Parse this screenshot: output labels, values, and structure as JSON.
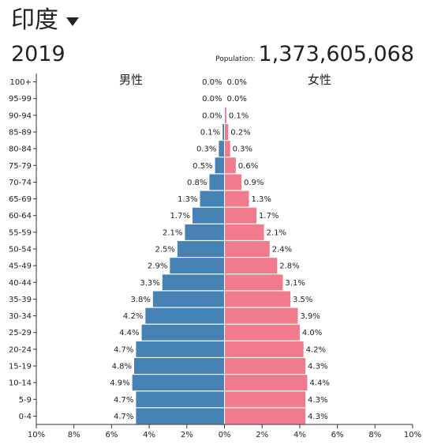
{
  "header": {
    "country": "印度",
    "year": "2019",
    "population_label": "Population:",
    "population_value": "1,373,605,068"
  },
  "chart_data": {
    "type": "bar",
    "orientation": "horizontal-pyramid",
    "categories": [
      "100+",
      "95-99",
      "90-94",
      "85-89",
      "80-84",
      "75-79",
      "70-74",
      "65-69",
      "60-64",
      "55-59",
      "50-54",
      "45-49",
      "40-44",
      "35-39",
      "30-34",
      "25-29",
      "20-24",
      "15-19",
      "10-14",
      "5-9",
      "0-4"
    ],
    "series": [
      {
        "name": "男性",
        "color": "#4682b4",
        "values": [
          0.0,
          0.0,
          0.0,
          0.1,
          0.3,
          0.5,
          0.8,
          1.3,
          1.7,
          2.1,
          2.5,
          2.9,
          3.3,
          3.8,
          4.2,
          4.4,
          4.7,
          4.8,
          4.9,
          4.7,
          4.7
        ],
        "labels": [
          "0.0%",
          "0.0%",
          "0.0%",
          "0.1%",
          "0.3%",
          "0.5%",
          "0.8%",
          "1.3%",
          "1.7%",
          "2.1%",
          "2.5%",
          "2.9%",
          "3.3%",
          "3.8%",
          "4.2%",
          "4.4%",
          "4.7%",
          "4.8%",
          "4.9%",
          "4.7%",
          "4.7%"
        ]
      },
      {
        "name": "女性",
        "color": "#f07b8c",
        "values": [
          0.0,
          0.0,
          0.1,
          0.2,
          0.3,
          0.6,
          0.9,
          1.3,
          1.7,
          2.1,
          2.4,
          2.8,
          3.1,
          3.5,
          3.9,
          4.0,
          4.2,
          4.3,
          4.4,
          4.3,
          4.3
        ],
        "labels": [
          "0.0%",
          "0.0%",
          "0.1%",
          "0.2%",
          "0.3%",
          "0.6%",
          "0.9%",
          "1.3%",
          "1.7%",
          "2.1%",
          "2.4%",
          "2.8%",
          "3.1%",
          "3.5%",
          "3.9%",
          "4.0%",
          "4.2%",
          "4.3%",
          "4.4%",
          "4.3%",
          "4.3%"
        ]
      }
    ],
    "xlim": [
      -10,
      10
    ],
    "x_ticks": [
      -10,
      -8,
      -6,
      -4,
      -2,
      0,
      2,
      4,
      6,
      8,
      10
    ],
    "x_tick_labels": [
      "10%",
      "8%",
      "6%",
      "4%",
      "2%",
      "0%",
      "2%",
      "4%",
      "6%",
      "8%",
      "10%"
    ],
    "grid": false
  }
}
